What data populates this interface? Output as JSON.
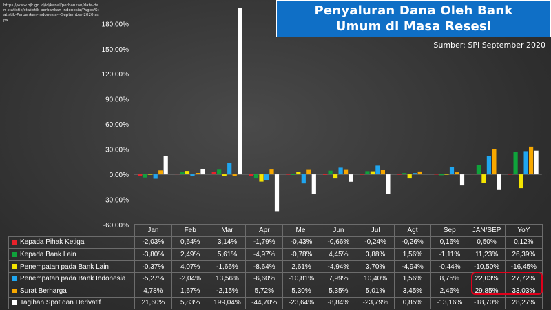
{
  "source_url": "https://www.ojk.go.id/id/kanal/perbankan/data-dan-statistik/statistik-perbankan-indonesia/Pages/Statistik-Perbankan-Indonesia---September-2020.aspx",
  "title": "Penyaluran Dana Oleh Bank Umum di Masa Resesi",
  "source_note": "Sumber: SPI September 2020",
  "chart_data": {
    "type": "bar",
    "categories": [
      "Jan",
      "Feb",
      "Mar",
      "Apr",
      "Mei",
      "Jun",
      "Jul",
      "Agt",
      "Sep",
      "JAN/SEP",
      "YoY"
    ],
    "ylim": [
      -60,
      200
    ],
    "yticks": [
      -60,
      -30,
      0,
      30,
      60,
      90,
      120,
      150,
      180
    ],
    "ytick_labels": [
      "-60.00%",
      "-30.00%",
      "0.00%",
      "30.00%",
      "60.00%",
      "90.00%",
      "120.00%",
      "150.00%",
      "180.00%"
    ],
    "grid": false,
    "legend": "table-below",
    "series": [
      {
        "name": "Kepada Pihak Ketiga",
        "color": "#e8212a",
        "values": [
          -2.03,
          0.64,
          3.14,
          -1.79,
          -0.43,
          -0.66,
          -0.24,
          -0.26,
          0.16,
          0.5,
          0.12
        ],
        "labels": [
          "-2,03%",
          "0,64%",
          "3,14%",
          "-1,79%",
          "-0,43%",
          "-0,66%",
          "-0,24%",
          "-0,26%",
          "0,16%",
          "0,50%",
          "0,12%"
        ]
      },
      {
        "name": "Kepada Bank Lain",
        "color": "#0fa33b",
        "values": [
          -3.8,
          2.49,
          5.61,
          -4.97,
          -0.78,
          4.45,
          3.88,
          1.56,
          -1.11,
          11.23,
          26.39
        ],
        "labels": [
          "-3,80%",
          "2,49%",
          "5,61%",
          "-4,97%",
          "-0,78%",
          "4,45%",
          "3,88%",
          "1,56%",
          "-1,11%",
          "11,23%",
          "26,39%"
        ]
      },
      {
        "name": "Penempatan pada Bank Lain",
        "color": "#f4e400",
        "values": [
          -0.37,
          4.07,
          -1.66,
          -8.64,
          2.61,
          -4.94,
          3.7,
          -4.94,
          -0.44,
          -10.5,
          -16.45
        ],
        "labels": [
          "-0,37%",
          "4,07%",
          "-1,66%",
          "-8,64%",
          "2,61%",
          "-4,94%",
          "3,70%",
          "-4,94%",
          "-0,44%",
          "-10,50%",
          "-16,45%"
        ]
      },
      {
        "name": "Penempatan pada Bank Indonesia",
        "color": "#1fa6f0",
        "values": [
          -5.27,
          -2.04,
          13.56,
          -6.6,
          -10.81,
          7.99,
          10.4,
          1.56,
          8.75,
          22.03,
          27.72
        ],
        "labels": [
          "-5,27%",
          "-2,04%",
          "13,56%",
          "-6,60%",
          "-10,81%",
          "7,99%",
          "10,40%",
          "1,56%",
          "8,75%",
          "22,03%",
          "27,72%"
        ]
      },
      {
        "name": "Surat Berharga",
        "color": "#f7a800",
        "values": [
          4.78,
          1.67,
          -2.15,
          5.72,
          5.3,
          5.35,
          5.01,
          3.45,
          2.46,
          29.85,
          33.03
        ],
        "labels": [
          "4,78%",
          "1,67%",
          "-2,15%",
          "5,72%",
          "5,30%",
          "5,35%",
          "5,01%",
          "3,45%",
          "2,46%",
          "29,85%",
          "33,03%"
        ]
      },
      {
        "name": "Tagihan Spot dan Derivatif",
        "color": "#ffffff",
        "values": [
          21.6,
          5.83,
          199.04,
          -44.7,
          -23.64,
          -8.84,
          -23.79,
          0.85,
          -13.16,
          -18.7,
          28.27
        ],
        "labels": [
          "21,60%",
          "5,83%",
          "199,04%",
          "-44,70%",
          "-23,64%",
          "-8,84%",
          "-23,79%",
          "0,85%",
          "-13,16%",
          "-18,70%",
          "28,27%"
        ]
      }
    ]
  }
}
